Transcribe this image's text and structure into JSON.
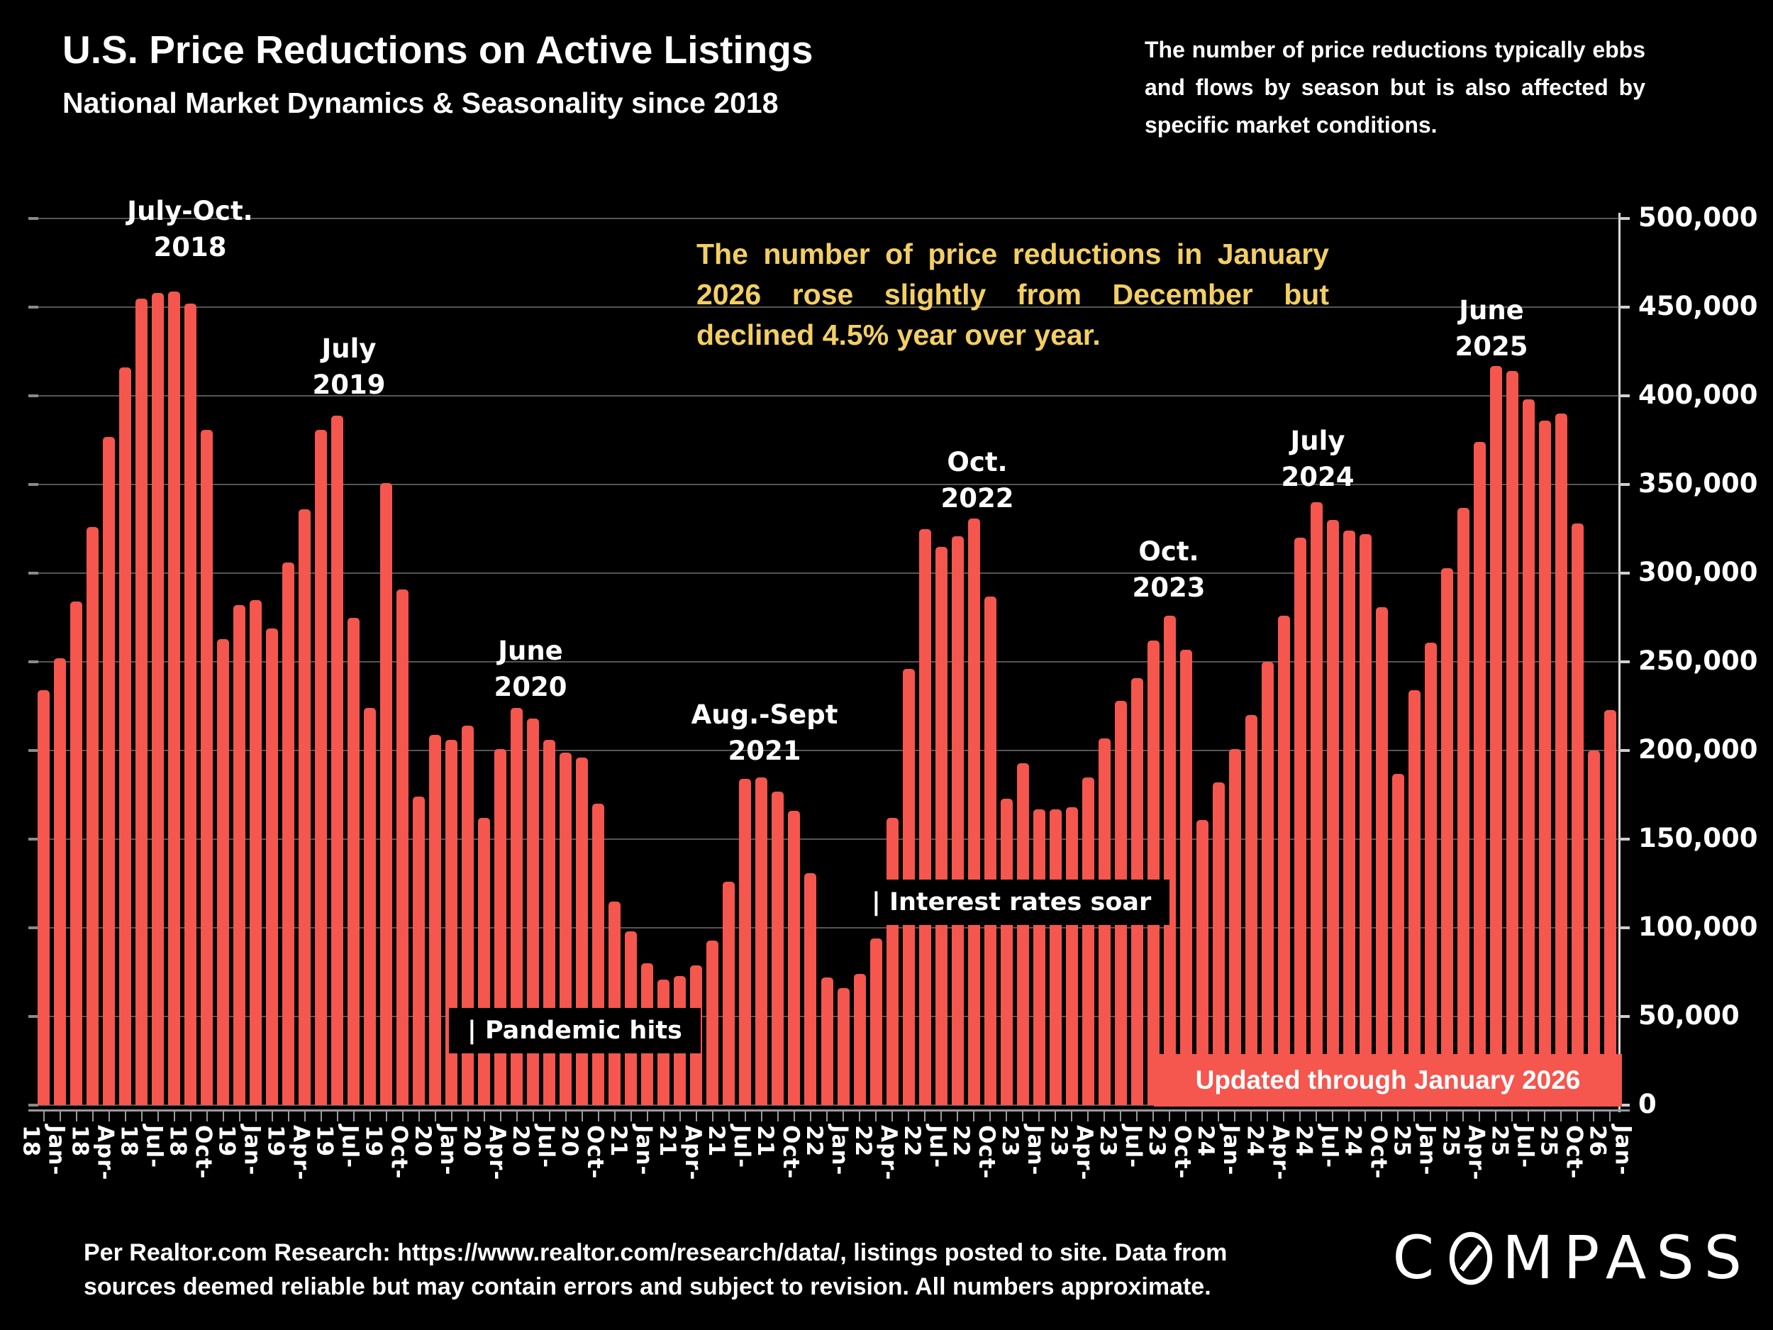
{
  "header": {
    "title": "U.S. Price Reductions on Active Listings",
    "subtitle": "National Market Dynamics & Seasonality since 2018",
    "note": "The number of price reductions typically ebbs and flows by season but is also affected by specific market conditions."
  },
  "highlight": {
    "text": "The number of price reductions in January 2026 rose slightly from December but declined 4.5% year over year.",
    "color": "#f3cf63"
  },
  "callouts": {
    "peak2018": {
      "line1": "July-Oct.",
      "line2": "2018"
    },
    "peak2019": {
      "line1": "July",
      "line2": "2019"
    },
    "peak2020": {
      "line1": "June",
      "line2": "2020"
    },
    "peak2021": {
      "line1": "Aug.-Sept",
      "line2": "2021"
    },
    "peak2022": {
      "line1": "Oct.",
      "line2": "2022"
    },
    "peak2023": {
      "line1": "Oct.",
      "line2": "2023"
    },
    "peak2024": {
      "line1": "July",
      "line2": "2024"
    },
    "peak2025": {
      "line1": "June",
      "line2": "2025"
    },
    "pandemic": "| Pandemic hits",
    "rates": "| Interest rates soar"
  },
  "banner": {
    "text": "Updated through January 2026"
  },
  "footer": {
    "text": "Per Realtor.com Research:  https://www.realtor.com/research/data/, listings posted to site. Data from sources deemed reliable but may contain errors and subject to revision. All numbers approximate."
  },
  "brand": {
    "prefix": "C",
    "suffix": "MPASS",
    "o_icon": "compass-needle-o"
  },
  "chart_data": {
    "type": "bar",
    "title": "U.S. Price Reductions on Active Listings",
    "xlabel": "",
    "ylabel": "",
    "bar_color": "#f5564e",
    "background": "#000000",
    "grid": true,
    "ylim": [
      0,
      500000
    ],
    "ytick_step": 50000,
    "yticks": [
      {
        "value": 500000,
        "label": "500,000"
      },
      {
        "value": 450000,
        "label": "450,000"
      },
      {
        "value": 400000,
        "label": "400,000"
      },
      {
        "value": 350000,
        "label": "350,000"
      },
      {
        "value": 300000,
        "label": "300,000"
      },
      {
        "value": 250000,
        "label": "250,000"
      },
      {
        "value": 200000,
        "label": "200,000"
      },
      {
        "value": 150000,
        "label": "150,000"
      },
      {
        "value": 100000,
        "label": "100,000"
      },
      {
        "value": 50000,
        "label": "50,000"
      },
      {
        "value": 0,
        "label": "0"
      }
    ],
    "xticks": [
      "Jan-18",
      "Apr-18",
      "Jul-18",
      "Oct-18",
      "Jan-19",
      "Apr-19",
      "Jul-19",
      "Oct-19",
      "Jan-20",
      "Apr-20",
      "Jul-20",
      "Oct-20",
      "Jan-21",
      "Apr-21",
      "Jul-21",
      "Oct-21",
      "Jan-22",
      "Apr-22",
      "Jul-22",
      "Oct-22",
      "Jan-23",
      "Apr-23",
      "Jul-23",
      "Oct-23",
      "Jan-24",
      "Apr-24",
      "Jul-24",
      "Oct-24",
      "Jan-25",
      "Apr-25",
      "Jul-25",
      "Oct-25",
      "Jan-26"
    ],
    "months": [
      "Jan-18",
      "Feb-18",
      "Mar-18",
      "Apr-18",
      "May-18",
      "Jun-18",
      "Jul-18",
      "Aug-18",
      "Sep-18",
      "Oct-18",
      "Nov-18",
      "Dec-18",
      "Jan-19",
      "Feb-19",
      "Mar-19",
      "Apr-19",
      "May-19",
      "Jun-19",
      "Jul-19",
      "Aug-19",
      "Sep-19",
      "Oct-19",
      "Nov-19",
      "Dec-19",
      "Jan-20",
      "Feb-20",
      "Mar-20",
      "Apr-20",
      "May-20",
      "Jun-20",
      "Jul-20",
      "Aug-20",
      "Sep-20",
      "Oct-20",
      "Nov-20",
      "Dec-20",
      "Jan-21",
      "Feb-21",
      "Mar-21",
      "Apr-21",
      "May-21",
      "Jun-21",
      "Jul-21",
      "Aug-21",
      "Sep-21",
      "Oct-21",
      "Nov-21",
      "Dec-21",
      "Jan-22",
      "Feb-22",
      "Mar-22",
      "Apr-22",
      "May-22",
      "Jun-22",
      "Jul-22",
      "Aug-22",
      "Sep-22",
      "Oct-22",
      "Nov-22",
      "Dec-22",
      "Jan-23",
      "Feb-23",
      "Mar-23",
      "Apr-23",
      "May-23",
      "Jun-23",
      "Jul-23",
      "Aug-23",
      "Sep-23",
      "Oct-23",
      "Nov-23",
      "Dec-23",
      "Jan-24",
      "Feb-24",
      "Mar-24",
      "Apr-24",
      "May-24",
      "Jun-24",
      "Jul-24",
      "Aug-24",
      "Sep-24",
      "Oct-24",
      "Nov-24",
      "Dec-24",
      "Jan-25",
      "Feb-25",
      "Mar-25",
      "Apr-25",
      "May-25",
      "Jun-25",
      "Jul-25",
      "Aug-25",
      "Sep-25",
      "Oct-25",
      "Nov-25",
      "Dec-25",
      "Jan-26"
    ],
    "values": [
      234000,
      252000,
      284000,
      326000,
      377000,
      416000,
      455000,
      458000,
      459000,
      452000,
      381000,
      263000,
      282000,
      285000,
      269000,
      306000,
      336000,
      381000,
      389000,
      275000,
      224000,
      351000,
      291000,
      174000,
      209000,
      206000,
      214000,
      162000,
      201000,
      224000,
      218000,
      206000,
      199000,
      196000,
      170000,
      115000,
      98000,
      80000,
      71000,
      73000,
      79000,
      93000,
      126000,
      184000,
      185000,
      177000,
      166000,
      131000,
      72000,
      66000,
      74000,
      94000,
      162000,
      246000,
      325000,
      315000,
      321000,
      331000,
      287000,
      173000,
      193000,
      167000,
      167000,
      168000,
      185000,
      207000,
      228000,
      241000,
      262000,
      276000,
      257000,
      161000,
      182000,
      201000,
      220000,
      250000,
      276000,
      320000,
      340000,
      330000,
      324000,
      322000,
      281000,
      187000,
      234000,
      261000,
      303000,
      337000,
      374000,
      417000,
      414000,
      398000,
      386000,
      390000,
      328000,
      200000,
      223000
    ],
    "annotations": [
      {
        "target": "Jul-18 to Oct-18 peak",
        "text": "July-Oct. 2018"
      },
      {
        "target": "Jul-19 peak",
        "text": "July 2019"
      },
      {
        "target": "Jun-20 peak",
        "text": "June 2020"
      },
      {
        "target": "Aug-21/Sep-21 peak",
        "text": "Aug.-Sept 2021"
      },
      {
        "target": "Oct-22 peak",
        "text": "Oct. 2022"
      },
      {
        "target": "Oct-23 peak",
        "text": "Oct. 2023"
      },
      {
        "target": "Jul-24 peak",
        "text": "July 2024"
      },
      {
        "target": "Jun-25 peak",
        "text": "June 2025"
      },
      {
        "target": "Apr-20",
        "text": "| Pandemic hits"
      },
      {
        "target": "mid-2022",
        "text": "| Interest rates soar"
      }
    ],
    "legend": null
  }
}
